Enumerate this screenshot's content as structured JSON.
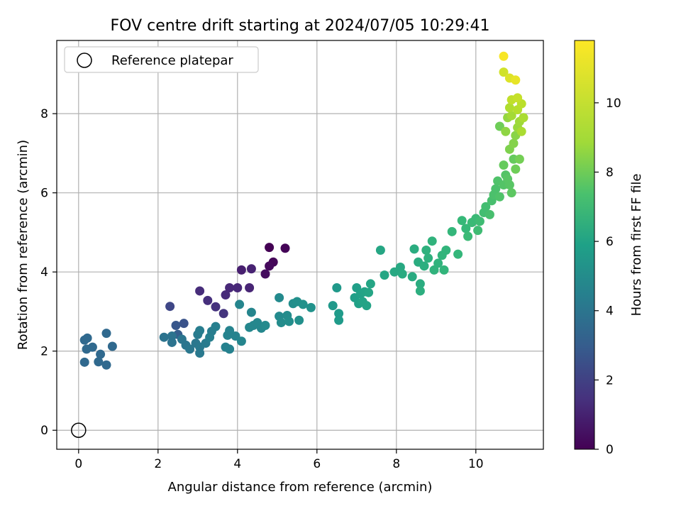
{
  "chart_data": {
    "type": "scatter",
    "title": "FOV centre drift starting at 2024/07/05 10:29:41",
    "xlabel": "Angular distance from reference (arcmin)",
    "ylabel": "Rotation from reference (arcmin)",
    "xlim": [
      -0.55,
      11.7
    ],
    "ylim": [
      -0.48,
      9.85
    ],
    "xticks": [
      0,
      2,
      4,
      6,
      8,
      10
    ],
    "yticks": [
      0,
      2,
      4,
      6,
      8
    ],
    "grid": true,
    "legend": {
      "position": "upper-left",
      "entries": [
        "Reference platepar"
      ]
    },
    "reference_point": {
      "x": 0,
      "y": 0
    },
    "colorbar": {
      "label": "Hours from first FF file",
      "range": [
        0,
        11.8
      ],
      "ticks": [
        0,
        2,
        4,
        6,
        8,
        10
      ],
      "colormap": "viridis"
    },
    "series": [
      {
        "columns": [
          "x",
          "y",
          "hours"
        ],
        "points": [
          [
            4.8,
            4.62,
            0.0
          ],
          [
            5.2,
            4.6,
            0.1
          ],
          [
            4.9,
            4.25,
            0.2
          ],
          [
            4.8,
            4.15,
            0.3
          ],
          [
            4.7,
            3.95,
            0.4
          ],
          [
            4.1,
            4.05,
            1.0
          ],
          [
            4.35,
            4.08,
            1.1
          ],
          [
            4.3,
            3.6,
            1.2
          ],
          [
            4.0,
            3.6,
            1.3
          ],
          [
            3.8,
            3.6,
            1.3
          ],
          [
            3.7,
            3.42,
            1.4
          ],
          [
            3.05,
            3.52,
            1.5
          ],
          [
            3.25,
            3.28,
            1.6
          ],
          [
            3.45,
            3.12,
            1.7
          ],
          [
            3.65,
            2.95,
            1.8
          ],
          [
            2.3,
            3.13,
            2.5
          ],
          [
            2.65,
            2.7,
            3.0
          ],
          [
            2.45,
            2.65,
            3.2
          ],
          [
            2.5,
            2.42,
            3.5
          ],
          [
            0.22,
            2.33,
            4.0
          ],
          [
            0.7,
            2.45,
            4.0
          ],
          [
            0.15,
            2.28,
            4.0
          ],
          [
            0.35,
            2.1,
            4.0
          ],
          [
            0.85,
            2.12,
            4.0
          ],
          [
            0.2,
            2.05,
            4.0
          ],
          [
            0.55,
            1.92,
            4.0
          ],
          [
            0.5,
            1.73,
            4.0
          ],
          [
            0.15,
            1.72,
            4.0
          ],
          [
            0.7,
            1.65,
            4.0
          ],
          [
            2.15,
            2.35,
            4.5
          ],
          [
            2.35,
            2.38,
            4.5
          ],
          [
            2.35,
            2.22,
            4.5
          ],
          [
            2.6,
            2.3,
            4.6
          ],
          [
            2.7,
            2.15,
            4.6
          ],
          [
            2.8,
            2.05,
            4.7
          ],
          [
            2.95,
            2.2,
            4.7
          ],
          [
            3.05,
            2.1,
            4.8
          ],
          [
            3.05,
            1.95,
            4.8
          ],
          [
            3.2,
            2.2,
            4.9
          ],
          [
            3.0,
            2.42,
            4.9
          ],
          [
            3.05,
            2.52,
            5.0
          ],
          [
            3.35,
            2.5,
            5.0
          ],
          [
            3.45,
            2.62,
            5.1
          ],
          [
            3.3,
            2.35,
            5.1
          ],
          [
            3.7,
            2.1,
            5.2
          ],
          [
            3.8,
            2.05,
            5.2
          ],
          [
            3.75,
            2.4,
            5.3
          ],
          [
            3.8,
            2.52,
            5.3
          ],
          [
            3.95,
            2.38,
            5.3
          ],
          [
            4.1,
            2.25,
            5.4
          ],
          [
            4.05,
            3.18,
            5.4
          ],
          [
            4.35,
            2.98,
            5.4
          ],
          [
            4.3,
            2.6,
            5.5
          ],
          [
            4.4,
            2.65,
            5.5
          ],
          [
            4.5,
            2.72,
            5.5
          ],
          [
            4.6,
            2.58,
            5.5
          ],
          [
            4.7,
            2.65,
            5.6
          ],
          [
            5.05,
            3.35,
            5.6
          ],
          [
            5.05,
            2.88,
            5.6
          ],
          [
            5.1,
            2.72,
            5.7
          ],
          [
            5.25,
            2.9,
            5.7
          ],
          [
            5.3,
            2.75,
            5.8
          ],
          [
            5.4,
            3.2,
            5.8
          ],
          [
            5.5,
            3.25,
            5.9
          ],
          [
            5.55,
            2.78,
            5.9
          ],
          [
            5.65,
            3.18,
            6.0
          ],
          [
            5.85,
            3.1,
            6.0
          ],
          [
            6.4,
            3.15,
            6.3
          ],
          [
            6.5,
            3.6,
            6.3
          ],
          [
            6.55,
            2.95,
            6.4
          ],
          [
            6.55,
            2.78,
            6.4
          ],
          [
            7.0,
            3.6,
            6.6
          ],
          [
            6.95,
            3.35,
            6.6
          ],
          [
            7.05,
            3.2,
            6.7
          ],
          [
            7.1,
            3.45,
            6.7
          ],
          [
            7.2,
            3.5,
            6.8
          ],
          [
            7.15,
            3.25,
            6.8
          ],
          [
            7.25,
            3.15,
            6.8
          ],
          [
            7.3,
            3.48,
            6.9
          ],
          [
            7.35,
            3.7,
            6.9
          ],
          [
            7.6,
            4.55,
            7.0
          ],
          [
            7.7,
            3.92,
            7.0
          ],
          [
            7.95,
            4.0,
            7.1
          ],
          [
            8.1,
            4.12,
            7.1
          ],
          [
            8.15,
            3.95,
            7.2
          ],
          [
            8.4,
            3.88,
            7.2
          ],
          [
            8.45,
            4.58,
            7.3
          ],
          [
            8.55,
            4.25,
            7.3
          ],
          [
            8.6,
            3.7,
            7.3
          ],
          [
            8.6,
            3.52,
            7.4
          ],
          [
            8.7,
            4.15,
            7.4
          ],
          [
            8.75,
            4.55,
            7.5
          ],
          [
            8.8,
            4.35,
            7.5
          ],
          [
            8.9,
            4.78,
            7.6
          ],
          [
            8.95,
            4.05,
            7.6
          ],
          [
            9.05,
            4.22,
            7.6
          ],
          [
            9.15,
            4.42,
            7.7
          ],
          [
            9.2,
            4.05,
            7.7
          ],
          [
            9.25,
            4.55,
            7.7
          ],
          [
            9.4,
            5.02,
            7.8
          ],
          [
            9.55,
            4.45,
            7.8
          ],
          [
            9.65,
            5.3,
            7.9
          ],
          [
            9.75,
            5.1,
            7.9
          ],
          [
            9.8,
            4.9,
            8.0
          ],
          [
            9.9,
            5.25,
            8.0
          ],
          [
            10.0,
            5.35,
            8.0
          ],
          [
            10.05,
            5.05,
            8.1
          ],
          [
            10.1,
            5.28,
            8.1
          ],
          [
            10.2,
            5.5,
            8.2
          ],
          [
            10.25,
            5.65,
            8.2
          ],
          [
            10.35,
            5.45,
            8.3
          ],
          [
            10.4,
            5.8,
            8.3
          ],
          [
            10.45,
            5.95,
            8.4
          ],
          [
            10.5,
            6.1,
            8.4
          ],
          [
            10.55,
            6.3,
            8.5
          ],
          [
            10.6,
            5.9,
            8.5
          ],
          [
            10.7,
            6.2,
            8.6
          ],
          [
            10.75,
            6.45,
            8.6
          ],
          [
            10.8,
            6.35,
            8.7
          ],
          [
            10.85,
            6.2,
            8.7
          ],
          [
            10.9,
            6.0,
            8.8
          ],
          [
            10.7,
            6.7,
            9.0
          ],
          [
            10.95,
            6.85,
            9.0
          ],
          [
            10.6,
            7.68,
            9.2
          ],
          [
            11.0,
            6.6,
            9.2
          ],
          [
            11.1,
            6.85,
            9.3
          ],
          [
            10.85,
            7.1,
            9.5
          ],
          [
            10.95,
            7.25,
            9.6
          ],
          [
            11.0,
            7.45,
            9.7
          ],
          [
            10.75,
            7.55,
            9.8
          ],
          [
            10.8,
            7.9,
            9.9
          ],
          [
            11.05,
            7.65,
            10.0
          ],
          [
            11.1,
            7.8,
            10.1
          ],
          [
            10.9,
            7.95,
            10.2
          ],
          [
            11.15,
            7.55,
            10.3
          ],
          [
            11.2,
            7.9,
            10.3
          ],
          [
            10.85,
            8.15,
            10.4
          ],
          [
            11.05,
            8.1,
            10.5
          ],
          [
            11.15,
            8.25,
            10.6
          ],
          [
            10.9,
            8.35,
            10.7
          ],
          [
            11.05,
            8.4,
            10.8
          ],
          [
            10.7,
            9.05,
            11.0
          ],
          [
            10.85,
            8.9,
            11.2
          ],
          [
            11.0,
            8.85,
            11.4
          ],
          [
            10.7,
            9.45,
            11.7
          ]
        ]
      }
    ]
  }
}
